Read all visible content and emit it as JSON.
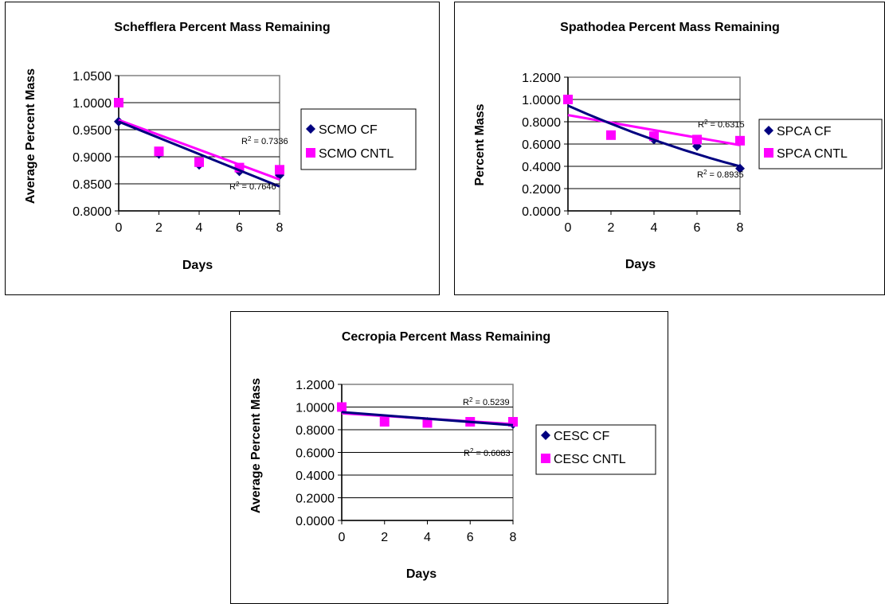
{
  "chart_data": [
    {
      "type": "scatter",
      "title": "Schefflera Percent Mass Remaining",
      "xlabel": "Days",
      "ylabel": "Average Percent Mass",
      "xlim": [
        0,
        8
      ],
      "ylim": [
        0.8,
        1.05
      ],
      "x_ticks": [
        "0",
        "2",
        "4",
        "6",
        "8"
      ],
      "y_ticks": [
        "0.8000",
        "0.8500",
        "0.9000",
        "0.9500",
        "1.0000",
        "1.0500"
      ],
      "grid": true,
      "legend": "right",
      "series": [
        {
          "name": "SCMO CF",
          "marker": "diamond",
          "color": "#000080",
          "x": [
            0,
            2,
            4,
            6,
            8
          ],
          "y": [
            0.965,
            0.905,
            0.885,
            0.873,
            0.866
          ],
          "trendline": {
            "y_start": 0.965,
            "y_end": 0.845,
            "label": "R² = 0.7646"
          }
        },
        {
          "name": "SCMO CNTL",
          "marker": "square",
          "color": "#ff00ff",
          "x": [
            0,
            2,
            4,
            6,
            8
          ],
          "y": [
            1.0,
            0.91,
            0.89,
            0.88,
            0.876
          ],
          "trendline": {
            "y_start": 0.968,
            "y_end": 0.858,
            "label": "R² = 0.7336"
          }
        }
      ]
    },
    {
      "type": "scatter",
      "title": "Spathodea Percent Mass Remaining",
      "xlabel": "Days",
      "ylabel": "Percent Mass",
      "xlim": [
        0,
        8
      ],
      "ylim": [
        0,
        1.2
      ],
      "x_ticks": [
        "0",
        "2",
        "4",
        "6",
        "8"
      ],
      "y_ticks": [
        "0.0000",
        "0.2000",
        "0.4000",
        "0.6000",
        "0.8000",
        "1.0000",
        "1.2000"
      ],
      "grid": true,
      "legend": "right",
      "series": [
        {
          "name": "SPCA CF",
          "marker": "diamond",
          "color": "#000080",
          "x": [
            0,
            2,
            4,
            6,
            8
          ],
          "y": [
            1.0,
            0.68,
            0.64,
            0.58,
            0.38
          ],
          "trendline": {
            "y_start": 0.945,
            "y_end": 0.4,
            "curve": true,
            "label": "R² = 0.8935"
          }
        },
        {
          "name": "SPCA CNTL",
          "marker": "square",
          "color": "#ff00ff",
          "x": [
            0,
            2,
            4,
            6,
            8
          ],
          "y": [
            1.0,
            0.68,
            0.67,
            0.64,
            0.63
          ],
          "trendline": {
            "y_start": 0.86,
            "y_end": 0.59,
            "label": "R² = 0.6315"
          }
        }
      ]
    },
    {
      "type": "scatter",
      "title": "Cecropia Percent Mass Remaining",
      "xlabel": "Days",
      "ylabel": "Average Percent Mass",
      "xlim": [
        0,
        8
      ],
      "ylim": [
        0,
        1.2
      ],
      "x_ticks": [
        "0",
        "2",
        "4",
        "6",
        "8"
      ],
      "y_ticks": [
        "0.0000",
        "0.2000",
        "0.4000",
        "0.6000",
        "0.8000",
        "1.0000",
        "1.2000"
      ],
      "grid": true,
      "legend": "right",
      "series": [
        {
          "name": "CESC CF",
          "marker": "diamond",
          "color": "#000080",
          "x": [
            0,
            2,
            4,
            6,
            8
          ],
          "y": [
            0.99,
            0.87,
            0.87,
            0.87,
            0.85
          ],
          "trendline": {
            "y_start": 0.955,
            "y_end": 0.84,
            "label": "R² = 0.6083"
          }
        },
        {
          "name": "CESC CNTL",
          "marker": "square",
          "color": "#ff00ff",
          "x": [
            0,
            2,
            4,
            6,
            8
          ],
          "y": [
            1.0,
            0.87,
            0.86,
            0.87,
            0.87
          ],
          "trendline": {
            "y_start": 0.945,
            "y_end": 0.85,
            "label": "R² = 0.5239"
          }
        }
      ]
    }
  ]
}
